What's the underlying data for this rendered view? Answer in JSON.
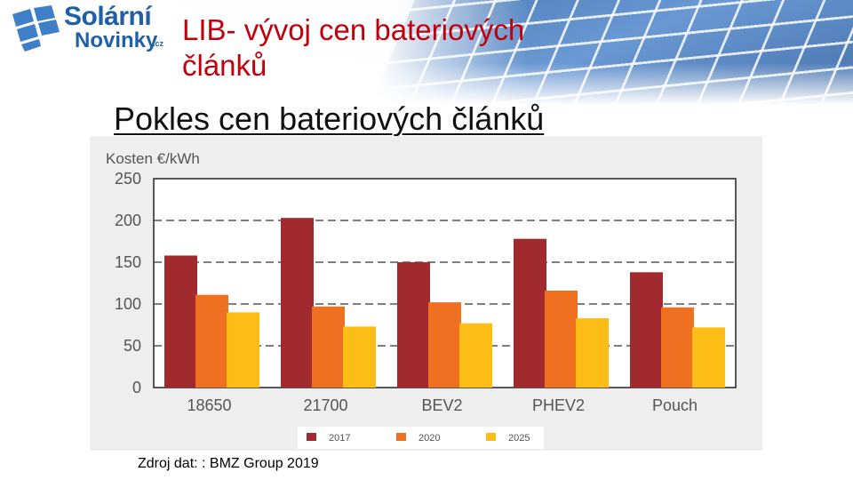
{
  "header": {
    "logo": {
      "line1": "Solární",
      "line2": "Novinky",
      "suffix": ".cz"
    },
    "title": "LIB- vývoj cen bateriových článků"
  },
  "subtitle": "Pokles cen bateriových článků",
  "colors": {
    "title_red": "#c0000c",
    "bar_2017": "#a02a2e",
    "bar_2020": "#f07022",
    "bar_2025": "#fbbd16",
    "chart_bg": "#eeeeee"
  },
  "chart_data": {
    "type": "bar",
    "ylabel": "Kosten €/kWh",
    "ylim": [
      0,
      250
    ],
    "yticks": [
      0,
      50,
      100,
      150,
      200,
      250
    ],
    "grid": "dashed horizontal",
    "categories": [
      "18650",
      "21700",
      "BEV2",
      "PHEV2",
      "Pouch"
    ],
    "series": [
      {
        "name": "2017",
        "color": "#a02a2e",
        "values": [
          158,
          203,
          150,
          178,
          138
        ]
      },
      {
        "name": "2020",
        "color": "#f07022",
        "values": [
          111,
          97,
          102,
          116,
          96
        ]
      },
      {
        "name": "2025",
        "color": "#fbbd16",
        "values": [
          90,
          73,
          77,
          83,
          72
        ]
      }
    ],
    "legend_position": "bottom"
  },
  "source": "Zdroj dat: : BMZ Group 2019"
}
